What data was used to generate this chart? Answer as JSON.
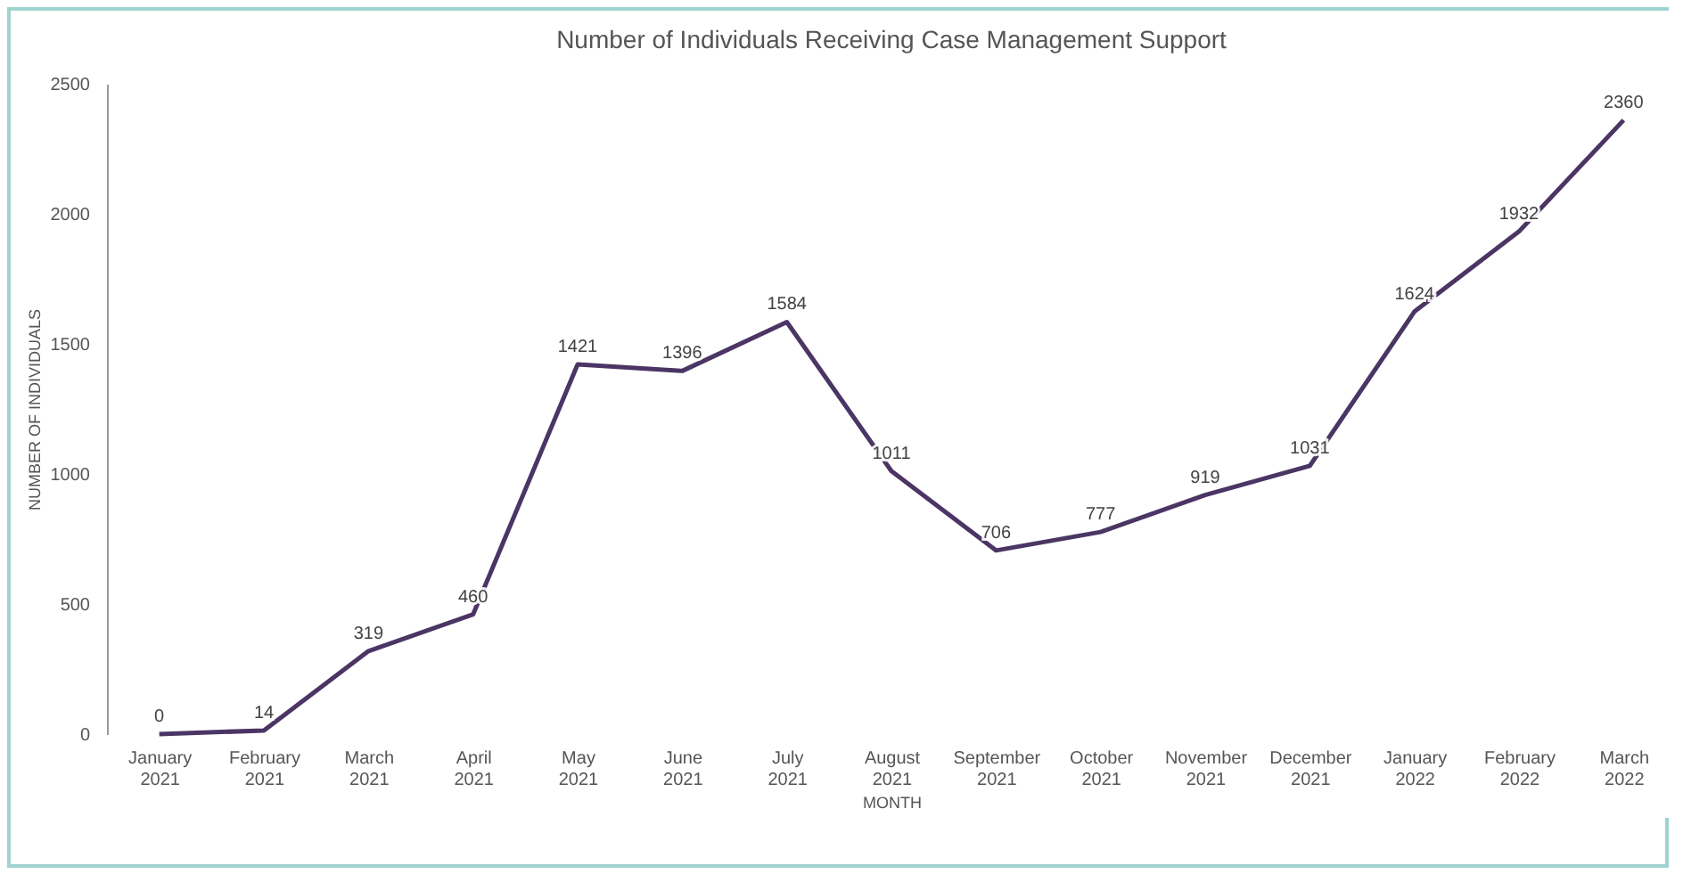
{
  "chart_data": {
    "type": "line",
    "title": "Number of Individuals Receiving Case Management Support",
    "xlabel": "MONTH",
    "ylabel": "NUMBER OF INDIVIDUALS",
    "categories": [
      "January 2021",
      "February 2021",
      "March 2021",
      "April 2021",
      "May 2021",
      "June 2021",
      "July 2021",
      "August 2021",
      "September 2021",
      "October 2021",
      "November 2021",
      "December 2021",
      "January 2022",
      "February 2022",
      "March 2022"
    ],
    "series": [
      {
        "color": "#4b3564",
        "values": [
          0,
          14,
          319,
          460,
          1421,
          1396,
          1584,
          1011,
          706,
          777,
          919,
          1031,
          1624,
          1932,
          2360
        ]
      }
    ],
    "ylim": [
      0,
      2500
    ],
    "yticks": [
      0,
      500,
      1000,
      1500,
      2000,
      2500
    ],
    "grid": false,
    "data_labels": true,
    "marker": "none",
    "line_style": "solid",
    "legend": false
  }
}
